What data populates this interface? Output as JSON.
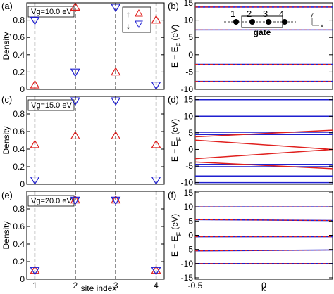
{
  "figure": {
    "xlabel_left": "site index",
    "xlabel_right": "k"
  },
  "legend_symbols": {
    "up": "↑",
    "down": "↓"
  },
  "inset": {
    "sites": [
      "1",
      "2",
      "3",
      "4"
    ],
    "gate_label": "gate",
    "axis_y": "y",
    "axis_x": "x"
  },
  "colors": {
    "up": "#e0201e",
    "down": "#1f1fd0",
    "axis": "#000000"
  },
  "chart_data": [
    {
      "id": "a",
      "panel_label": "(a)",
      "type": "scatter",
      "annotation": "Vg=10.0 eV",
      "xlabel": "",
      "ylabel": "Density",
      "xlim": [
        0.8,
        4.2
      ],
      "ylim": [
        0,
        1
      ],
      "xticks": [
        1,
        2,
        3,
        4
      ],
      "yticks": [
        0,
        0.2,
        0.4,
        0.6,
        0.8
      ],
      "x": [
        1,
        2,
        3,
        4
      ],
      "series": [
        {
          "marker": "triangle-up",
          "color": "#e0201e",
          "values": [
            0.05,
            0.95,
            0.2,
            0.8
          ]
        },
        {
          "marker": "triangle-down",
          "color": "#1f1fd0",
          "values": [
            0.8,
            0.2,
            0.95,
            0.05
          ]
        }
      ],
      "legend": "top-right",
      "grid": false
    },
    {
      "id": "b",
      "panel_label": "(b)",
      "type": "line",
      "xlabel": "",
      "ylabel": "E − E_F (eV)",
      "xlim": [
        -0.5,
        0.5
      ],
      "ylim": [
        -10,
        15
      ],
      "yticks": [
        -10,
        -5,
        0,
        5,
        10,
        15
      ],
      "x": [
        -0.5,
        0.5
      ],
      "lines": [
        {
          "y": [
            13.8,
            13.8
          ],
          "style": "overlap"
        },
        {
          "y": [
            7.2,
            7.2
          ],
          "style": "overlap"
        },
        {
          "y": [
            -2.8,
            -2.8
          ],
          "style": "overlap"
        },
        {
          "y": [
            -7.7,
            -7.7
          ],
          "style": "overlap"
        }
      ],
      "grid": false
    },
    {
      "id": "c",
      "panel_label": "(c)",
      "type": "scatter",
      "annotation": "Vg=15.0 eV",
      "xlabel": "",
      "ylabel": "Density",
      "xlim": [
        0.8,
        4.2
      ],
      "ylim": [
        0,
        1
      ],
      "xticks": [
        1,
        2,
        3,
        4
      ],
      "yticks": [
        0,
        0.2,
        0.4,
        0.6,
        0.8
      ],
      "x": [
        1,
        2,
        3,
        4
      ],
      "series": [
        {
          "marker": "triangle-up",
          "color": "#e0201e",
          "values": [
            0.45,
            0.55,
            0.55,
            0.45
          ]
        },
        {
          "marker": "triangle-down",
          "color": "#1f1fd0",
          "values": [
            0.05,
            0.95,
            0.95,
            0.05
          ]
        }
      ],
      "grid": false
    },
    {
      "id": "d",
      "panel_label": "(d)",
      "type": "line",
      "xlabel": "",
      "ylabel": "E − E_F (eV)",
      "xlim": [
        -0.5,
        0.5
      ],
      "ylim": [
        -10.5,
        16
      ],
      "yticks": [
        -10,
        -5,
        0,
        5,
        10,
        15
      ],
      "x": [
        -0.5,
        0.5
      ],
      "lines": [
        {
          "y": [
            15,
            15
          ],
          "style": "blue"
        },
        {
          "y": [
            10,
            10
          ],
          "style": "blue"
        },
        {
          "y": [
            5.2,
            5.2
          ],
          "style": "blue"
        },
        {
          "y": [
            4.5,
            4.5
          ],
          "style": "blue"
        },
        {
          "y": [
            -4.5,
            -4.5
          ],
          "style": "blue"
        },
        {
          "y": [
            -5.2,
            -5.2
          ],
          "style": "blue"
        },
        {
          "y": [
            -8,
            -8
          ],
          "style": "blue"
        },
        {
          "y": [
            -10,
            -10
          ],
          "style": "blue"
        },
        {
          "y": [
            3.8,
            5.8
          ],
          "style": "red"
        },
        {
          "y": [
            2.8,
            0
          ],
          "style": "red"
        },
        {
          "y": [
            -2.8,
            0
          ],
          "style": "red"
        },
        {
          "y": [
            -3.8,
            -5.8
          ],
          "style": "red"
        }
      ],
      "grid": false
    },
    {
      "id": "e",
      "panel_label": "(e)",
      "type": "scatter",
      "annotation": "Vg=20.0 eV",
      "xlabel": "",
      "ylabel": "Density",
      "xlim": [
        0.8,
        4.2
      ],
      "ylim": [
        0,
        1
      ],
      "xticks": [
        1,
        2,
        3,
        4
      ],
      "yticks": [
        0,
        0.2,
        0.4,
        0.6,
        0.8
      ],
      "x": [
        1,
        2,
        3,
        4
      ],
      "series": [
        {
          "marker": "triangle-up",
          "color": "#e0201e",
          "values": [
            0.1,
            0.9,
            0.9,
            0.1
          ]
        },
        {
          "marker": "triangle-down",
          "color": "#1f1fd0",
          "values": [
            0.1,
            0.9,
            0.9,
            0.1
          ]
        }
      ],
      "grid": false
    },
    {
      "id": "f",
      "panel_label": "(f)",
      "type": "line",
      "xlabel": "k",
      "ylabel": "E − E_F (eV)",
      "xlim": [
        -0.5,
        0.5
      ],
      "ylim": [
        -15.5,
        15.5
      ],
      "xticks": [
        -0.5,
        0
      ],
      "yticks": [
        -15,
        -10,
        -5,
        0,
        5,
        10,
        15
      ],
      "x": [
        -0.5,
        0.5
      ],
      "lines": [
        {
          "y": [
            10,
            10
          ],
          "style": "overlap"
        },
        {
          "y": [
            5.5,
            5.2
          ],
          "style": "overlap"
        },
        {
          "y": [
            -0.5,
            -0.5
          ],
          "style": "overlap"
        },
        {
          "y": [
            -5.5,
            -5.2
          ],
          "style": "overlap"
        },
        {
          "y": [
            -10,
            -10
          ],
          "style": "overlap"
        }
      ],
      "grid": false
    }
  ]
}
